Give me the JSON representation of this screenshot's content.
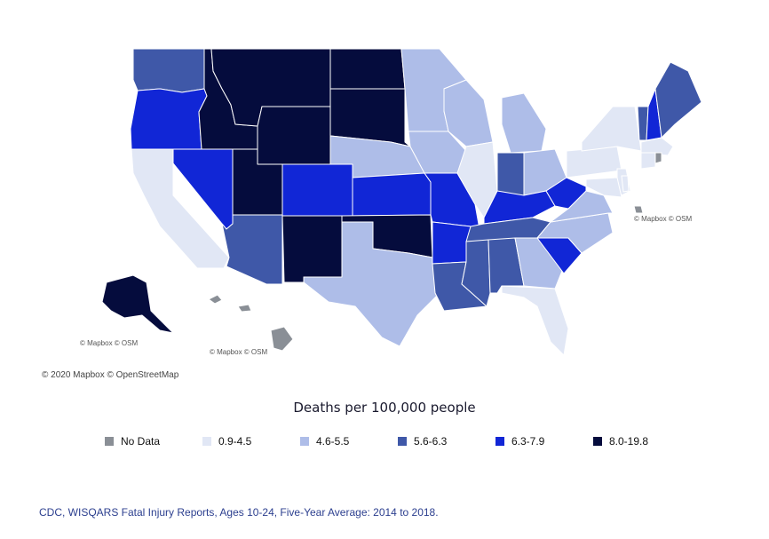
{
  "attribution": {
    "main": "© 2020 Mapbox © OpenStreetMap",
    "inset_alaska": "© Mapbox © OSM",
    "inset_hawaii": "© Mapbox © OSM",
    "inset_dc": "© Mapbox © OSM"
  },
  "legend": {
    "title": "Deaths per 100,000 people",
    "items": [
      {
        "label": "No Data",
        "color": "#8a8f96"
      },
      {
        "label": "0.9-4.5",
        "color": "#e1e7f5"
      },
      {
        "label": "4.6-5.5",
        "color": "#aebde8"
      },
      {
        "label": "5.6-6.3",
        "color": "#3f58a8"
      },
      {
        "label": "6.3-7.9",
        "color": "#1126d6"
      },
      {
        "label": "8.0-19.8",
        "color": "#050c3d"
      }
    ]
  },
  "source": "CDC, WISQARS Fatal Injury Reports, Ages 10-24, Five-Year Average: 2014 to 2018.",
  "states": [
    {
      "name": "Washington",
      "bin": 3
    },
    {
      "name": "Oregon",
      "bin": 4
    },
    {
      "name": "California",
      "bin": 1
    },
    {
      "name": "Nevada",
      "bin": 4
    },
    {
      "name": "Idaho",
      "bin": 5
    },
    {
      "name": "Montana",
      "bin": 5
    },
    {
      "name": "Wyoming",
      "bin": 5
    },
    {
      "name": "Utah",
      "bin": 5
    },
    {
      "name": "Arizona",
      "bin": 3
    },
    {
      "name": "Colorado",
      "bin": 4
    },
    {
      "name": "New Mexico",
      "bin": 5
    },
    {
      "name": "North Dakota",
      "bin": 5
    },
    {
      "name": "South Dakota",
      "bin": 5
    },
    {
      "name": "Nebraska",
      "bin": 2
    },
    {
      "name": "Kansas",
      "bin": 4
    },
    {
      "name": "Oklahoma",
      "bin": 5
    },
    {
      "name": "Texas",
      "bin": 2
    },
    {
      "name": "Minnesota",
      "bin": 2
    },
    {
      "name": "Iowa",
      "bin": 2
    },
    {
      "name": "Missouri",
      "bin": 4
    },
    {
      "name": "Arkansas",
      "bin": 4
    },
    {
      "name": "Louisiana",
      "bin": 3
    },
    {
      "name": "Wisconsin",
      "bin": 2
    },
    {
      "name": "Illinois",
      "bin": 1
    },
    {
      "name": "Michigan",
      "bin": 2
    },
    {
      "name": "Indiana",
      "bin": 3
    },
    {
      "name": "Ohio",
      "bin": 2
    },
    {
      "name": "Kentucky",
      "bin": 4
    },
    {
      "name": "Tennessee",
      "bin": 3
    },
    {
      "name": "Mississippi",
      "bin": 3
    },
    {
      "name": "Alabama",
      "bin": 3
    },
    {
      "name": "Georgia",
      "bin": 2
    },
    {
      "name": "Florida",
      "bin": 1
    },
    {
      "name": "South Carolina",
      "bin": 4
    },
    {
      "name": "North Carolina",
      "bin": 2
    },
    {
      "name": "Virginia",
      "bin": 2
    },
    {
      "name": "West Virginia",
      "bin": 4
    },
    {
      "name": "Pennsylvania",
      "bin": 1
    },
    {
      "name": "New York",
      "bin": 1
    },
    {
      "name": "New Jersey",
      "bin": 1
    },
    {
      "name": "Maryland",
      "bin": 1
    },
    {
      "name": "Delaware",
      "bin": 1
    },
    {
      "name": "Vermont",
      "bin": 3
    },
    {
      "name": "New Hampshire",
      "bin": 4
    },
    {
      "name": "Maine",
      "bin": 3
    },
    {
      "name": "Massachusetts",
      "bin": 1
    },
    {
      "name": "Connecticut",
      "bin": 1
    },
    {
      "name": "Rhode Island",
      "bin": 0
    },
    {
      "name": "Alaska",
      "bin": 5
    },
    {
      "name": "Hawaii",
      "bin": 0
    },
    {
      "name": "District of Columbia",
      "bin": 0
    }
  ]
}
